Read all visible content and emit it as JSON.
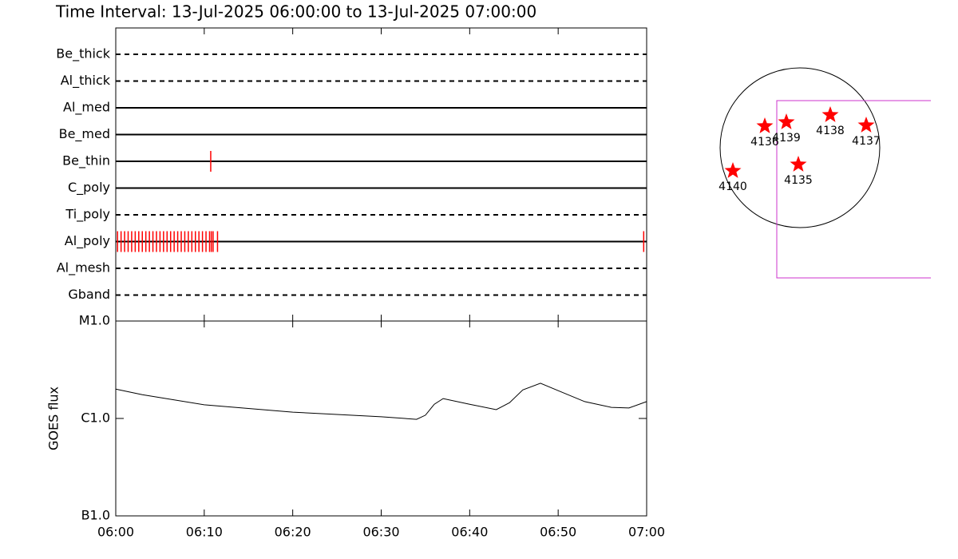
{
  "title": "Time Interval: 13-Jul-2025 06:00:00 to 13-Jul-2025 07:00:00",
  "chart_data": [
    {
      "type": "timeline",
      "xlim": [
        "06:00",
        "07:00"
      ],
      "xticks": [
        "06:00",
        "06:10",
        "06:20",
        "06:30",
        "06:40",
        "06:50",
        "07:00"
      ],
      "color": "#ff0000",
      "rows": [
        {
          "name": "Be_thick",
          "style": "dashed",
          "times": []
        },
        {
          "name": "Al_thick",
          "style": "dashed",
          "times": []
        },
        {
          "name": "Al_med",
          "style": "solid",
          "times": []
        },
        {
          "name": "Be_med",
          "style": "solid",
          "times": []
        },
        {
          "name": "Be_thin",
          "style": "solid",
          "times": [
            "06:10:44"
          ]
        },
        {
          "name": "C_poly",
          "style": "solid",
          "times": []
        },
        {
          "name": "Ti_poly",
          "style": "dashed",
          "times": []
        },
        {
          "name": "Al_poly",
          "style": "solid",
          "times": [
            "06:00:12",
            "06:00:36",
            "06:01:00",
            "06:01:24",
            "06:01:48",
            "06:02:12",
            "06:02:36",
            "06:03:00",
            "06:03:24",
            "06:03:48",
            "06:04:12",
            "06:04:36",
            "06:05:00",
            "06:05:24",
            "06:05:48",
            "06:06:12",
            "06:06:36",
            "06:07:00",
            "06:07:24",
            "06:07:48",
            "06:08:12",
            "06:08:36",
            "06:09:00",
            "06:09:24",
            "06:09:48",
            "06:10:12",
            "06:10:36",
            "06:10:48",
            "06:11:00",
            "06:11:30",
            "06:59:40"
          ]
        },
        {
          "name": "Al_mesh",
          "style": "dashed",
          "times": []
        },
        {
          "name": "Gband",
          "style": "dashed",
          "times": []
        }
      ]
    },
    {
      "type": "line",
      "xlim": [
        "06:00",
        "07:00"
      ],
      "xticks": [
        "06:00",
        "06:10",
        "06:20",
        "06:30",
        "06:40",
        "06:50",
        "07:00"
      ],
      "ylim": [
        1e-07,
        1e-05
      ],
      "log_y": true,
      "yticks": [
        {
          "value": 1e-07,
          "label": "B1.0"
        },
        {
          "value": 1e-06,
          "label": "C1.0"
        },
        {
          "value": 1e-05,
          "label": "M1.0"
        }
      ],
      "ylabel": "GOES flux",
      "color": "#000000",
      "x": [
        "06:00",
        "06:03",
        "06:10",
        "06:20",
        "06:30",
        "06:34",
        "06:35",
        "06:36",
        "06:37",
        "06:40",
        "06:43",
        "06:44:30",
        "06:46",
        "06:48",
        "06:50",
        "06:53",
        "06:56",
        "06:58",
        "07:00"
      ],
      "values": [
        2e-06,
        1.75e-06,
        1.38e-06,
        1.16e-06,
        1.04e-06,
        9.8e-07,
        1.08e-06,
        1.4e-06,
        1.6e-06,
        1.4e-06,
        1.23e-06,
        1.45e-06,
        1.96e-06,
        2.3e-06,
        1.93e-06,
        1.49e-06,
        1.3e-06,
        1.28e-06,
        1.49e-06
      ]
    }
  ],
  "map": {
    "spots": [
      "4136",
      "4139",
      "4138",
      "4137",
      "4135",
      "4140"
    ]
  }
}
